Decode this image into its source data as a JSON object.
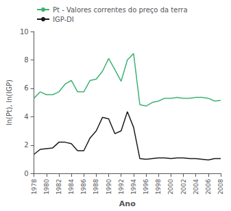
{
  "chart_data": {
    "type": "line",
    "xlabel": "Ano",
    "ylabel": "ln(Pt), ln(IGP)",
    "x": [
      1978,
      1979,
      1980,
      1981,
      1982,
      1983,
      1984,
      1985,
      1986,
      1987,
      1988,
      1989,
      1990,
      1991,
      1992,
      1993,
      1994,
      1995,
      1996,
      1997,
      1998,
      1999,
      2000,
      2001,
      2002,
      2003,
      2004,
      2005,
      2006,
      2007,
      2008
    ],
    "series": [
      {
        "name": "Pt - Valores correntes do preço da terra",
        "color": "#3cb371",
        "values": [
          5.3,
          5.75,
          5.55,
          5.55,
          5.75,
          6.3,
          6.55,
          5.75,
          5.75,
          6.55,
          6.65,
          7.2,
          8.1,
          7.3,
          6.5,
          8.0,
          8.45,
          4.85,
          4.75,
          5.0,
          5.1,
          5.3,
          5.3,
          5.35,
          5.3,
          5.3,
          5.35,
          5.35,
          5.3,
          5.1,
          5.15
        ]
      },
      {
        "name": "IGP-DI",
        "color": "#1a1a1a",
        "values": [
          1.35,
          1.7,
          1.75,
          1.8,
          2.2,
          2.2,
          2.1,
          1.6,
          1.6,
          2.5,
          3.0,
          3.95,
          3.85,
          2.8,
          3.0,
          4.35,
          3.25,
          1.05,
          1.0,
          1.05,
          1.1,
          1.1,
          1.05,
          1.1,
          1.1,
          1.05,
          1.05,
          1.0,
          0.95,
          1.05,
          1.05
        ]
      }
    ],
    "xlim": [
      1978,
      2008
    ],
    "ylim": [
      0,
      10
    ],
    "xticks": [
      1978,
      1980,
      1982,
      1984,
      1986,
      1988,
      1990,
      1992,
      1994,
      1996,
      1998,
      2000,
      2002,
      2004,
      2006,
      2008
    ],
    "yticks": [
      0,
      2,
      4,
      6,
      8,
      10
    ],
    "grid": false,
    "legend": "upper left"
  }
}
